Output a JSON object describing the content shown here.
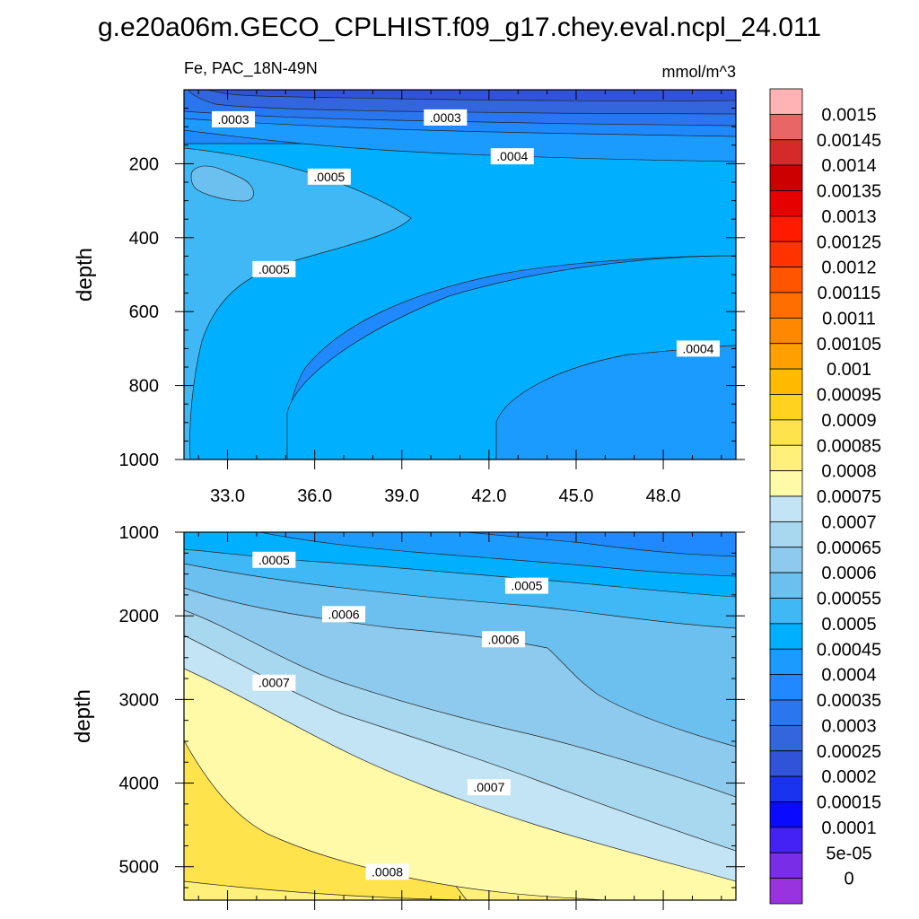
{
  "title": "g.e20a06m.GECO_CPLHIST.f09_g17.chey.eval.ncpl_24.011",
  "chart_data": [
    {
      "type": "contour",
      "panel": "upper",
      "left_label": "Fe, PAC_18N-49N",
      "right_label": "mmol/m^3",
      "xlabel": "",
      "ylabel": "depth",
      "xlim": [
        31.5,
        50.5
      ],
      "ylim": [
        1000,
        0
      ],
      "x_ticks": [
        33.0,
        36.0,
        39.0,
        42.0,
        45.0,
        48.0
      ],
      "x_tick_labels": [
        "33.0",
        "36.0",
        "39.0",
        "42.0",
        "45.0",
        "48.0"
      ],
      "y_ticks": [
        200,
        400,
        600,
        800,
        1000
      ],
      "y_tick_labels": [
        "200",
        "400",
        "600",
        "800",
        "1000"
      ],
      "contour_labels": [
        {
          "text": ".0003",
          "x": 33.2,
          "depth": 80
        },
        {
          "text": ".0003",
          "x": 40.5,
          "depth": 75
        },
        {
          "text": ".0004",
          "x": 42.8,
          "depth": 180
        },
        {
          "text": ".0005",
          "x": 36.5,
          "depth": 235
        },
        {
          "text": ".0005",
          "x": 34.6,
          "depth": 485
        },
        {
          "text": ".0004",
          "x": 49.2,
          "depth": 700
        }
      ]
    },
    {
      "type": "contour",
      "panel": "lower",
      "xlabel": "",
      "ylabel": "depth",
      "xlim": [
        31.5,
        50.5
      ],
      "ylim": [
        5400,
        1000
      ],
      "y_ticks": [
        1000,
        2000,
        3000,
        4000,
        5000
      ],
      "y_tick_labels": [
        "1000",
        "2000",
        "3000",
        "4000",
        "5000"
      ],
      "contour_labels": [
        {
          "text": ".0005",
          "x": 34.6,
          "depth": 1330
        },
        {
          "text": ".0005",
          "x": 43.3,
          "depth": 1640
        },
        {
          "text": ".0006",
          "x": 37.0,
          "depth": 1980
        },
        {
          "text": ".0006",
          "x": 42.5,
          "depth": 2280
        },
        {
          "text": ".0007",
          "x": 34.6,
          "depth": 2800
        },
        {
          "text": ".0007",
          "x": 42.0,
          "depth": 4050
        },
        {
          "text": ".0008",
          "x": 38.5,
          "depth": 5060
        }
      ]
    }
  ],
  "colorbar": {
    "labels": [
      "0.0015",
      "0.00145",
      "0.0014",
      "0.00135",
      "0.0013",
      "0.00125",
      "0.0012",
      "0.00115",
      "0.0011",
      "0.00105",
      "0.001",
      "0.00095",
      "0.0009",
      "0.00085",
      "0.0008",
      "0.00075",
      "0.0007",
      "0.00065",
      "0.0006",
      "0.00055",
      "0.0005",
      "0.00045",
      "0.0004",
      "0.00035",
      "0.0003",
      "0.00025",
      "0.0002",
      "0.00015",
      "0.0001",
      "5e-05",
      "0"
    ],
    "colors": [
      "#ffb3b3",
      "#e86666",
      "#d42a2a",
      "#cc0000",
      "#e60000",
      "#ff1a00",
      "#ff3300",
      "#ff5500",
      "#ff6f00",
      "#ff8800",
      "#ffa000",
      "#ffbb00",
      "#ffd21f",
      "#ffe34d",
      "#fff07a",
      "#fffaa8",
      "#c2e4f5",
      "#a8d8f0",
      "#8ecaee",
      "#6cc0f0",
      "#40b8f5",
      "#00b0ff",
      "#1c9bff",
      "#2189ff",
      "#2a76ee",
      "#3366dd",
      "#3153d9",
      "#1a33ee",
      "#0a0aff",
      "#4422f5",
      "#7a2de6",
      "#9933e0"
    ]
  }
}
